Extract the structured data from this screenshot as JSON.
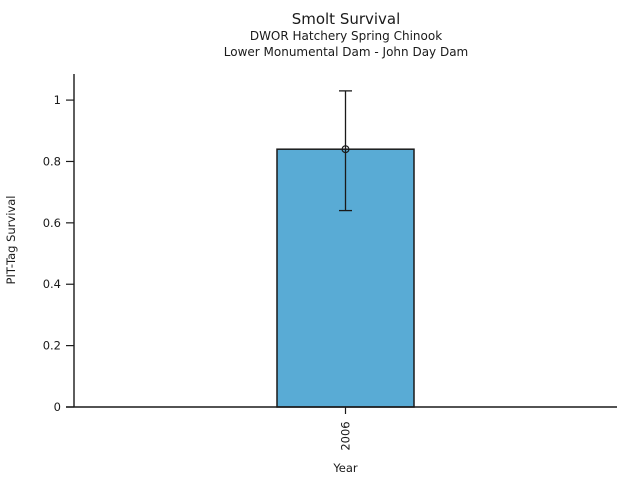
{
  "page": {
    "title": "Smolt Survival",
    "subtitle1": "DWOR Hatchery Spring Chinook",
    "subtitle2": "Lower Monumental Dam - John Day Dam"
  },
  "chart_data": {
    "type": "bar",
    "title": "Smolt Survival",
    "subtitles": [
      "DWOR Hatchery Spring Chinook",
      "Lower Monumental Dam - John Day Dam"
    ],
    "categories": [
      "2006"
    ],
    "values": [
      0.84
    ],
    "error_low": [
      0.64
    ],
    "error_high": [
      1.03
    ],
    "xlabel": "Year",
    "ylabel": "PIT-Tag Survival",
    "ylim": [
      0,
      1.085
    ],
    "ytick_labels": [
      "0",
      "0.2",
      "0.4",
      "0.6",
      "0.8",
      "1"
    ],
    "ytick_values": [
      0,
      0.2,
      0.4,
      0.6,
      0.8,
      1
    ],
    "grid": false,
    "legend_position": "none",
    "marker": "open-circle",
    "colors": {
      "bar_fill": "#59ABD5",
      "bar_edge": "#1a1a1a",
      "error_bar": "#1a1a1a",
      "axis": "#1a1a1a",
      "text": "#1a1a1a"
    }
  }
}
